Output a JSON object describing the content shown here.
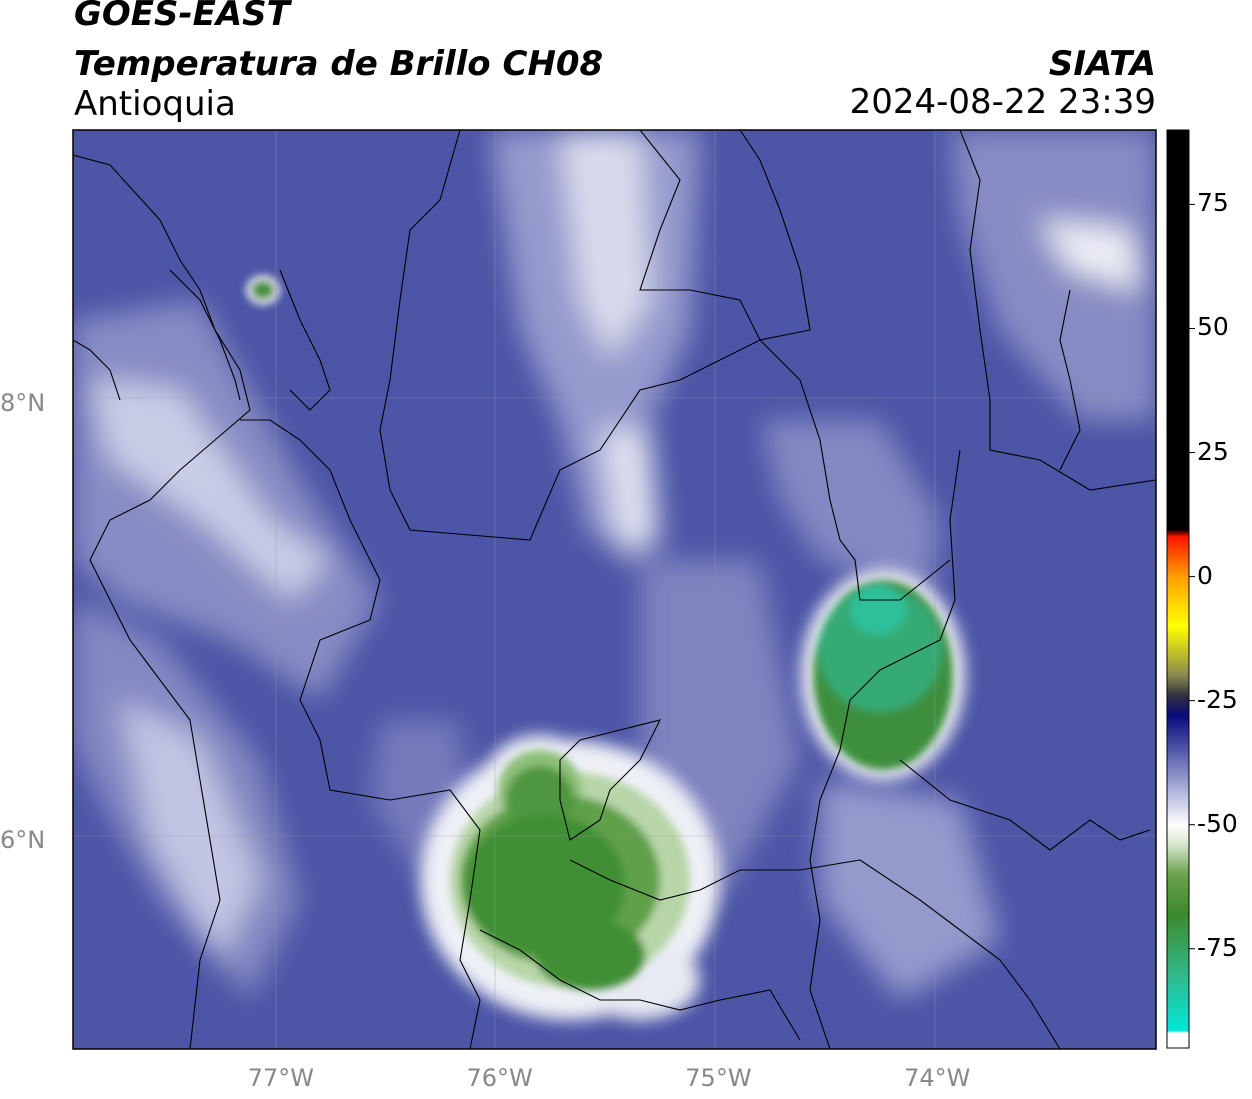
{
  "header": {
    "satellite": "GOES-EAST",
    "product": "Temperatura de Brillo CH08",
    "region": "Antioquia",
    "organization": "SIATA",
    "datetime": "2024-08-22 23:39"
  },
  "axes": {
    "lat_ticks": [
      {
        "value": 8,
        "label": "8°N"
      },
      {
        "value": 6,
        "label": "6°N"
      }
    ],
    "lon_ticks": [
      {
        "value": -77,
        "label": "77°W"
      },
      {
        "value": -76,
        "label": "76°W"
      },
      {
        "value": -75,
        "label": "75°W"
      },
      {
        "value": -74,
        "label": "74°W"
      }
    ],
    "lon_range": [
      -77.95,
      -73.0
    ],
    "lat_range": [
      5.05,
      9.25
    ]
  },
  "colorbar": {
    "range": [
      -95,
      90
    ],
    "ticks": [
      75,
      50,
      25,
      0,
      -25,
      -50,
      -75
    ],
    "tick_labels": [
      "75",
      "50",
      "25",
      "0",
      "-25",
      "-50",
      "-75"
    ],
    "stops": [
      {
        "value": -95,
        "color": "#ffffff"
      },
      {
        "value": -92,
        "color": "#ffffff"
      },
      {
        "value": -91.5,
        "color": "#00e6d9"
      },
      {
        "value": -80,
        "color": "#33b889"
      },
      {
        "value": -68,
        "color": "#3c8a2d"
      },
      {
        "value": -60,
        "color": "#6aa34e"
      },
      {
        "value": -54,
        "color": "#d6e6cc"
      },
      {
        "value": -50,
        "color": "#ffffff"
      },
      {
        "value": -44,
        "color": "#b8bde0"
      },
      {
        "value": -36,
        "color": "#5e63b0"
      },
      {
        "value": -28,
        "color": "#0a0a7a"
      },
      {
        "value": -24,
        "color": "#303040"
      },
      {
        "value": -20,
        "color": "#888850"
      },
      {
        "value": -10,
        "color": "#ffff00"
      },
      {
        "value": 0,
        "color": "#ff9f00"
      },
      {
        "value": 8,
        "color": "#ff1500"
      },
      {
        "value": 9.5,
        "color": "#000000"
      },
      {
        "value": 90,
        "color": "#000000"
      }
    ]
  },
  "map_colors": {
    "background": "#4c55a6",
    "light": "#9ea3d2",
    "white": "#f2f2f8",
    "cold_cloud": "#3f8f35",
    "coldest_cloud": "#2fb589"
  }
}
